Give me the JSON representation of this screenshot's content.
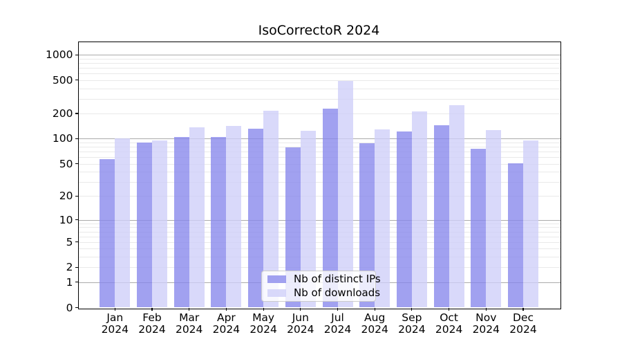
{
  "chart_data": {
    "type": "bar",
    "title": "IsoCorrectoR 2024",
    "months": [
      "Jan",
      "Feb",
      "Mar",
      "Apr",
      "May",
      "Jun",
      "Jul",
      "Aug",
      "Sep",
      "Oct",
      "Nov",
      "Dec"
    ],
    "year": "2024",
    "categories": [
      "Jan 2024",
      "Feb 2024",
      "Mar 2024",
      "Apr 2024",
      "May 2024",
      "Jun 2024",
      "Jul 2024",
      "Aug 2024",
      "Sep 2024",
      "Oct 2024",
      "Nov 2024",
      "Dec 2024"
    ],
    "series": [
      {
        "name": "Nb of distinct IPs",
        "color": "#a2a2f0",
        "fill": "rgba(134,134,236,0.78)",
        "values": [
          57,
          90,
          104,
          104,
          131,
          78,
          230,
          89,
          123,
          145,
          75,
          51
        ]
      },
      {
        "name": "Nb of downloads",
        "color": "#d9d9fa",
        "fill": "rgba(206,206,249,0.78)",
        "values": [
          100,
          95,
          137,
          142,
          216,
          125,
          490,
          130,
          213,
          250,
          127,
          96
        ]
      }
    ],
    "yscale": "log10(1+x)",
    "ylim": [
      0,
      1300
    ],
    "xlabel": "",
    "ylabel": "",
    "y_ticks": [
      0,
      1,
      2,
      5,
      10,
      20,
      50,
      100,
      200,
      500,
      1000
    ],
    "y_tick_labels": [
      "0",
      "1",
      "2",
      "5",
      "10",
      "20",
      "50",
      "100",
      "200",
      "500",
      "1000"
    ],
    "major_gridlines": [
      1,
      10,
      100,
      1000
    ],
    "minor_gridlines": [
      2,
      3,
      4,
      5,
      6,
      7,
      8,
      9,
      20,
      30,
      40,
      50,
      60,
      70,
      80,
      90,
      200,
      300,
      400,
      500,
      600,
      700,
      800,
      900
    ],
    "grid": true,
    "legend_position": "lower center"
  },
  "colors": {
    "background": "#ffffff",
    "axis": "#000000",
    "major_grid": "#ababab",
    "minor_grid": "#e9e9e9",
    "legend_border": "#cbcbcb",
    "legend_background": "rgba(255,255,255,0.8)"
  }
}
